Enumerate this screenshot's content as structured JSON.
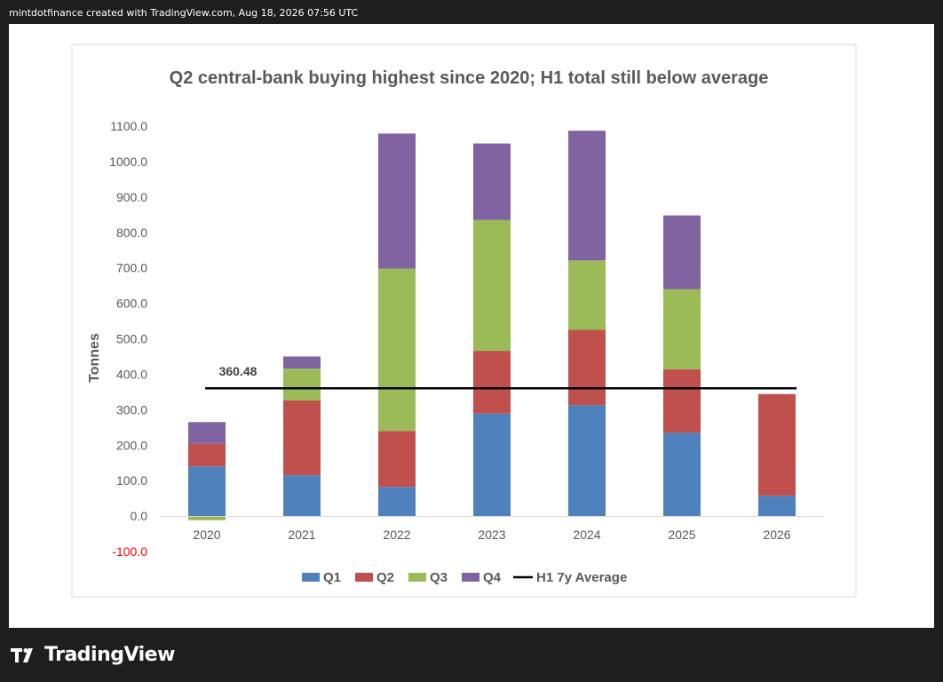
{
  "header": {
    "attribution": "mintdotfinance created with TradingView.com, Aug 18, 2026 07:56 UTC"
  },
  "brand": {
    "name": "TradingView",
    "logo_icon": "tradingview-logo-icon"
  },
  "chart_data": {
    "type": "bar",
    "stacked": true,
    "title": "Q2 central-bank buying highest since 2020; H1 total still below average",
    "ylabel": "Tonnes",
    "xlabel": "",
    "ylim": [
      -100,
      1100
    ],
    "yticks": [
      "-100.0",
      "0.0",
      "100.0",
      "200.0",
      "300.0",
      "400.0",
      "500.0",
      "600.0",
      "700.0",
      "800.0",
      "900.0",
      "1000.0",
      "1100.0"
    ],
    "yticks_values": [
      -100,
      0,
      100,
      200,
      300,
      400,
      500,
      600,
      700,
      800,
      900,
      1000,
      1100
    ],
    "negative_tick_color": "#ff0000",
    "grid": false,
    "legend_position": "bottom",
    "categories": [
      "2020",
      "2021",
      "2022",
      "2023",
      "2024",
      "2025",
      "2026"
    ],
    "series": [
      {
        "name": "Q1",
        "color": "#4f81bd",
        "values": [
          140,
          115,
          82,
          289,
          313,
          235,
          57
        ]
      },
      {
        "name": "Q2",
        "color": "#c0504d",
        "values": [
          64,
          211,
          158,
          177,
          212,
          179,
          287
        ]
      },
      {
        "name": "Q3",
        "color": "#9bbb59",
        "values": [
          -12,
          90,
          458,
          369,
          196,
          226,
          0
        ]
      },
      {
        "name": "Q4",
        "color": "#8064a2",
        "values": [
          61,
          34,
          381,
          216,
          366,
          208,
          0
        ]
      }
    ],
    "reference_line": {
      "name": "H1 7y Average",
      "value": 360.48,
      "label": "360.48",
      "color": "#000000"
    }
  }
}
